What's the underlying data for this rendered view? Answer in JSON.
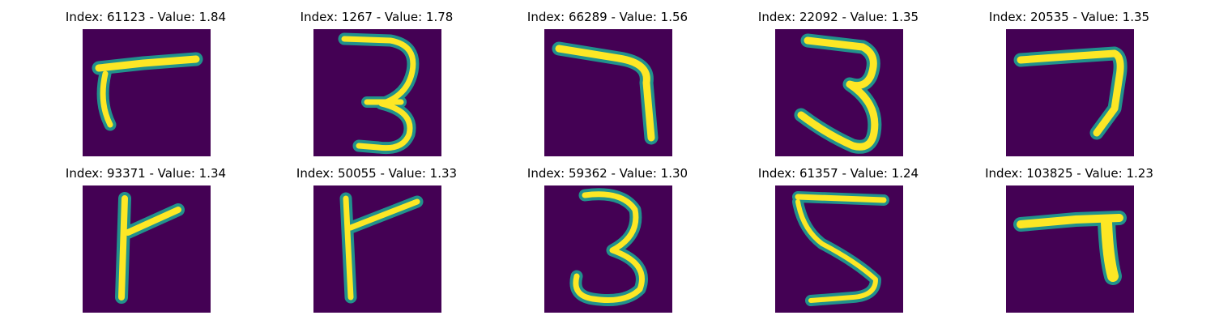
{
  "figure": {
    "colormap": {
      "background": "#440154",
      "mid": "#21918c",
      "high": "#fde725"
    },
    "panels": [
      {
        "title": "Index: 61123 - Value: 1.84",
        "digit_shape": "seven-variant"
      },
      {
        "title": "Index: 1267 - Value: 1.78",
        "digit_shape": "three"
      },
      {
        "title": "Index: 66289 - Value: 1.56",
        "digit_shape": "seven"
      },
      {
        "title": "Index: 22092 - Value: 1.35",
        "digit_shape": "three"
      },
      {
        "title": "Index: 20535 - Value: 1.35",
        "digit_shape": "seven"
      },
      {
        "title": "Index: 93371 - Value: 1.34",
        "digit_shape": "seven-variant"
      },
      {
        "title": "Index: 50055 - Value: 1.33",
        "digit_shape": "seven-variant"
      },
      {
        "title": "Index: 59362 - Value: 1.30",
        "digit_shape": "three"
      },
      {
        "title": "Index: 61357 - Value: 1.24",
        "digit_shape": "five"
      },
      {
        "title": "Index: 103825 - Value: 1.23",
        "digit_shape": "seven"
      }
    ]
  }
}
